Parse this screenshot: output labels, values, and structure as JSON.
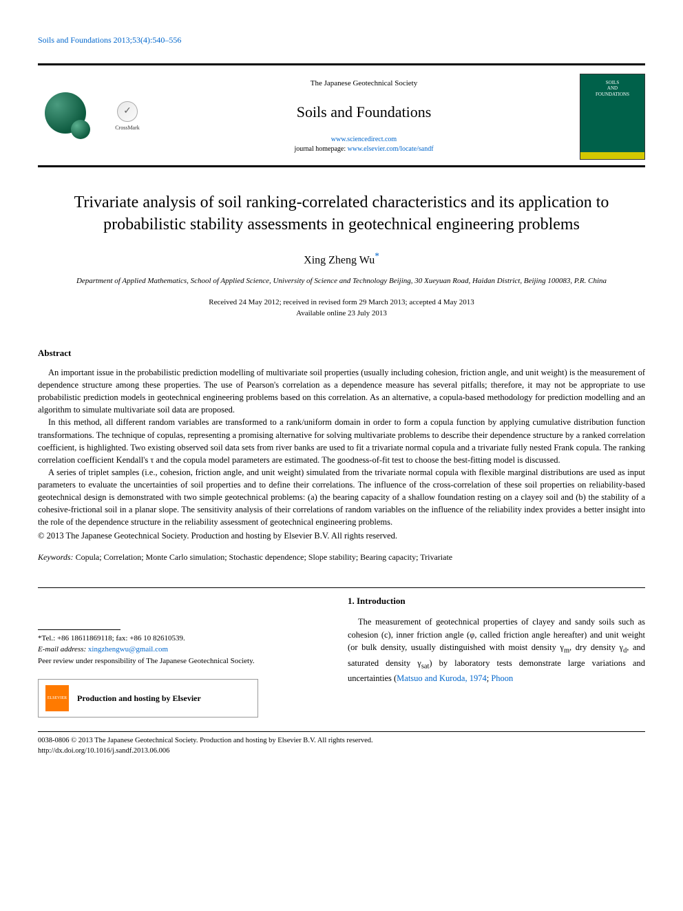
{
  "citation": {
    "text": "Soils and Foundations 2013;53(4):540–556",
    "link_color": "#0066cc"
  },
  "header": {
    "society": "The Japanese Geotechnical Society",
    "journal": "Soils and Foundations",
    "link1_label": "www.sciencedirect.com",
    "homepage_prefix": "journal homepage: ",
    "link2_label": "www.elsevier.com/locate/sandf",
    "crossmark_label": "CrossMark",
    "cover_title": "SOILS\nAND\nFOUNDATIONS",
    "cover_bg": "#00614a",
    "cover_band": "#d4c800"
  },
  "article": {
    "title": "Trivariate analysis of soil ranking-correlated characteristics and its application to probabilistic stability assessments in geotechnical engineering problems",
    "author": "Xing Zheng Wu",
    "author_mark": "*",
    "affiliation": "Department of Applied Mathematics, School of Applied Science, University of Science and Technology Beijing, 30 Xueyuan Road, Haidan District, Beijing 100083, P.R. China",
    "dates_line1": "Received 24 May 2012; received in revised form 29 March 2013; accepted 4 May 2013",
    "dates_line2": "Available online 23 July 2013"
  },
  "abstract": {
    "heading": "Abstract",
    "p1": "An important issue in the probabilistic prediction modelling of multivariate soil properties (usually including cohesion, friction angle, and unit weight) is the measurement of dependence structure among these properties. The use of Pearson's correlation as a dependence measure has several pitfalls; therefore, it may not be appropriate to use probabilistic prediction models in geotechnical engineering problems based on this correlation. As an alternative, a copula-based methodology for prediction modelling and an algorithm to simulate multivariate soil data are proposed.",
    "p2": "In this method, all different random variables are transformed to a rank/uniform domain in order to form a copula function by applying cumulative distribution function transformations. The technique of copulas, representing a promising alternative for solving multivariate problems to describe their dependence structure by a ranked correlation coefficient, is highlighted. Two existing observed soil data sets from river banks are used to fit a trivariate normal copula and a trivariate fully nested Frank copula. The ranking correlation coefficient Kendall's τ and the copula model parameters are estimated. The goodness-of-fit test to choose the best-fitting model is discussed.",
    "p3": "A series of triplet samples (i.e., cohesion, friction angle, and unit weight) simulated from the trivariate normal copula with flexible marginal distributions are used as input parameters to evaluate the uncertainties of soil properties and to define their correlations. The influence of the cross-correlation of these soil properties on reliability-based geotechnical design is demonstrated with two simple geotechnical problems: (a) the bearing capacity of a shallow foundation resting on a clayey soil and (b) the stability of a cohesive-frictional soil in a planar slope. The sensitivity analysis of their correlations of random variables on the influence of the reliability index provides a better insight into the role of the dependence structure in the reliability assessment of geotechnical engineering problems.",
    "copyright": "© 2013 The Japanese Geotechnical Society. Production and hosting by Elsevier B.V. All rights reserved."
  },
  "keywords": {
    "label": "Keywords:",
    "text": " Copula; Correlation; Monte Carlo simulation; Stochastic dependence; Slope stability; Bearing capacity; Trivariate"
  },
  "footnote": {
    "tel": "*Tel.: +86 18611869118; fax: +86 10 82610539.",
    "email_label": "E-mail address: ",
    "email": "xingzhengwu@gmail.com",
    "peer_review": "Peer review under responsibility of The Japanese Geotechnical Society.",
    "hosting": "Production and hosting by Elsevier",
    "elsevier_label": "ELSEVIER"
  },
  "intro": {
    "heading": "1.  Introduction",
    "text_part1": "The measurement of geotechnical properties of clayey and sandy soils such as cohesion (c), inner friction angle (φ, called friction angle hereafter) and unit weight (or bulk density, usually distinguished with moist density γ",
    "sub_m": "m",
    "text_part2": ", dry density γ",
    "sub_d": "d",
    "text_part3": ", and saturated density γ",
    "sub_sat": "sat",
    "text_part4": ") by laboratory tests demonstrate large variations and uncertainties (",
    "ref1": "Matsuo and Kuroda, 1974",
    "text_part5": "; ",
    "ref2": "Phoon"
  },
  "footer": {
    "line1": "0038-0806 © 2013 The Japanese Geotechnical Society. Production and hosting by Elsevier B.V. All rights reserved.",
    "line2": "http://dx.doi.org/10.1016/j.sandf.2013.06.006"
  },
  "colors": {
    "link": "#0066cc",
    "text": "#000000",
    "sphere_dark": "#0d5a3f",
    "sphere_light": "#4a9b7f"
  }
}
